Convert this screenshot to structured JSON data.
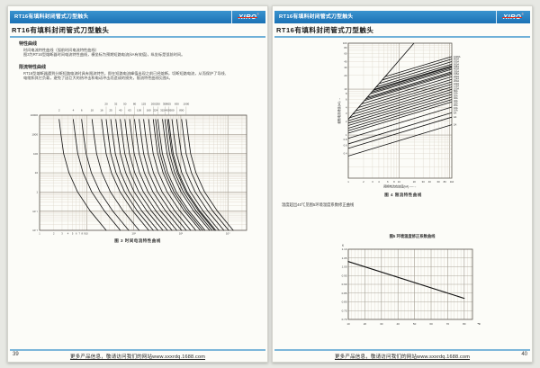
{
  "logo": {
    "text": "XIRO",
    "reg": "®"
  },
  "header_bar_title": "RT16有填料封闭管式刀型触头",
  "page_title": "RT16有填料封闭管式刀型触头",
  "footer_text": "更多产品信息，敬请访问我们的网站www.sxxrdq.1688.com",
  "left_page": {
    "page_number": "39",
    "sections": [
      {
        "heading": "特性曲线",
        "lines": [
          "时间电流特性曲线（弧前时间电流特性曲线）",
          "图3为RT16型熔断器时间电流特性曲线，横坐标为预期短路电流(kA有效值)，纵坐标是弧前时间。"
        ]
      },
      {
        "heading": "限流特性曲线",
        "lines": [
          "RT16型熔断器遇到分断短路电流时具有限流特性，即在短路电流峰值出现之前已经熔断，切断短路电流，从而保护了导线、",
          "电缆和其它负载，避免了因巨大的热冲击和电动冲击而造成的损失，限流特性曲线见图4。"
        ]
      }
    ]
  },
  "right_page": {
    "page_number": "40",
    "note": "温度超出40℃见图5环境温度系数修正曲线"
  },
  "chart_data": [
    {
      "id": "fig3",
      "type": "line",
      "title": "图 3 时间电流特性曲线",
      "xlabel": "",
      "ylabel": "",
      "x_scale": "log",
      "y_scale": "log",
      "xlim": [
        1,
        25000
      ],
      "ylim": [
        0.01,
        10000
      ],
      "y_tick_values": [
        10000,
        1000,
        100,
        10,
        1,
        0.1,
        0.01
      ],
      "y_tick_labels": [
        "10000",
        "1000",
        "100",
        "10",
        "1",
        "10⁻¹",
        "10⁻²"
      ],
      "x_tick_values": [
        1,
        2,
        3,
        4,
        5,
        6,
        7,
        8,
        9,
        10,
        100,
        1000,
        10000
      ],
      "x_tick_labels": [
        "1",
        "2",
        "3",
        "4",
        "5",
        "6",
        "7",
        "8",
        "9",
        "10",
        "10²",
        "10³",
        "10⁴"
      ],
      "ratings_A": [
        2,
        4,
        6,
        10,
        16,
        20,
        25,
        32,
        40,
        50,
        63,
        80,
        100,
        125,
        160,
        200,
        224,
        250,
        315,
        355,
        400,
        425,
        500,
        630,
        800,
        1000
      ],
      "curve_points_t_vs_multiple": [
        [
          6000,
          1.3
        ],
        [
          1000,
          1.42
        ],
        [
          100,
          1.62
        ],
        [
          10,
          2.1
        ],
        [
          1,
          3.2
        ],
        [
          0.1,
          6.0
        ],
        [
          0.01,
          13.0
        ]
      ],
      "grid": true
    },
    {
      "id": "fig4",
      "type": "line",
      "title": "图 4 限流特性曲线",
      "xlabel": "预期电流有效值(kA)",
      "ylabel": "截断电流峰值(kA)",
      "x_scale": "log",
      "y_scale": "log",
      "xlim": [
        1,
        110
      ],
      "ylim": [
        0.115,
        100
      ],
      "y_tick_values": [
        100,
        80,
        60,
        40,
        30,
        20,
        10,
        8,
        6,
        4,
        3,
        2,
        1,
        0.8,
        0.6,
        0.4
      ],
      "x_tick_values": [
        1,
        2,
        3,
        4,
        6,
        8,
        10,
        20,
        30,
        40,
        60,
        80,
        110
      ],
      "rating_labels": [
        "1000A",
        "800A",
        "630A",
        "500A",
        "425A",
        "400A",
        "355A",
        "315A",
        "250A",
        "224A",
        "200A",
        "160A",
        "125A",
        "100A",
        "80A",
        "63A",
        "50A",
        "40A",
        "32A",
        "25A",
        "20A",
        "16A",
        "10A",
        "6A",
        "4A",
        "2A"
      ],
      "envelope": {
        "k": 2.2,
        "p": 1.28,
        "x_from": 1
      },
      "line_exp": 0.333,
      "c_base": 0.35,
      "c_exp": 0.55,
      "grid": true
    },
    {
      "id": "fig5",
      "type": "line",
      "title": "图5 环境温度修正系数曲线",
      "ylabel": "K",
      "x_unit": "℃",
      "xlim": [
        10,
        85
      ],
      "ylim": [
        0.7,
        1.1
      ],
      "x_ticks": [
        10,
        20,
        30,
        40,
        50,
        60,
        70,
        80
      ],
      "y_tick_labels": [
        "1.10",
        "1.05",
        "1.00",
        "0.95",
        "0.90",
        "0.85",
        "0.80",
        "0.75",
        "0.70"
      ],
      "line_points": [
        [
          10,
          1.03
        ],
        [
          80,
          0.82
        ]
      ],
      "grid": true
    }
  ]
}
